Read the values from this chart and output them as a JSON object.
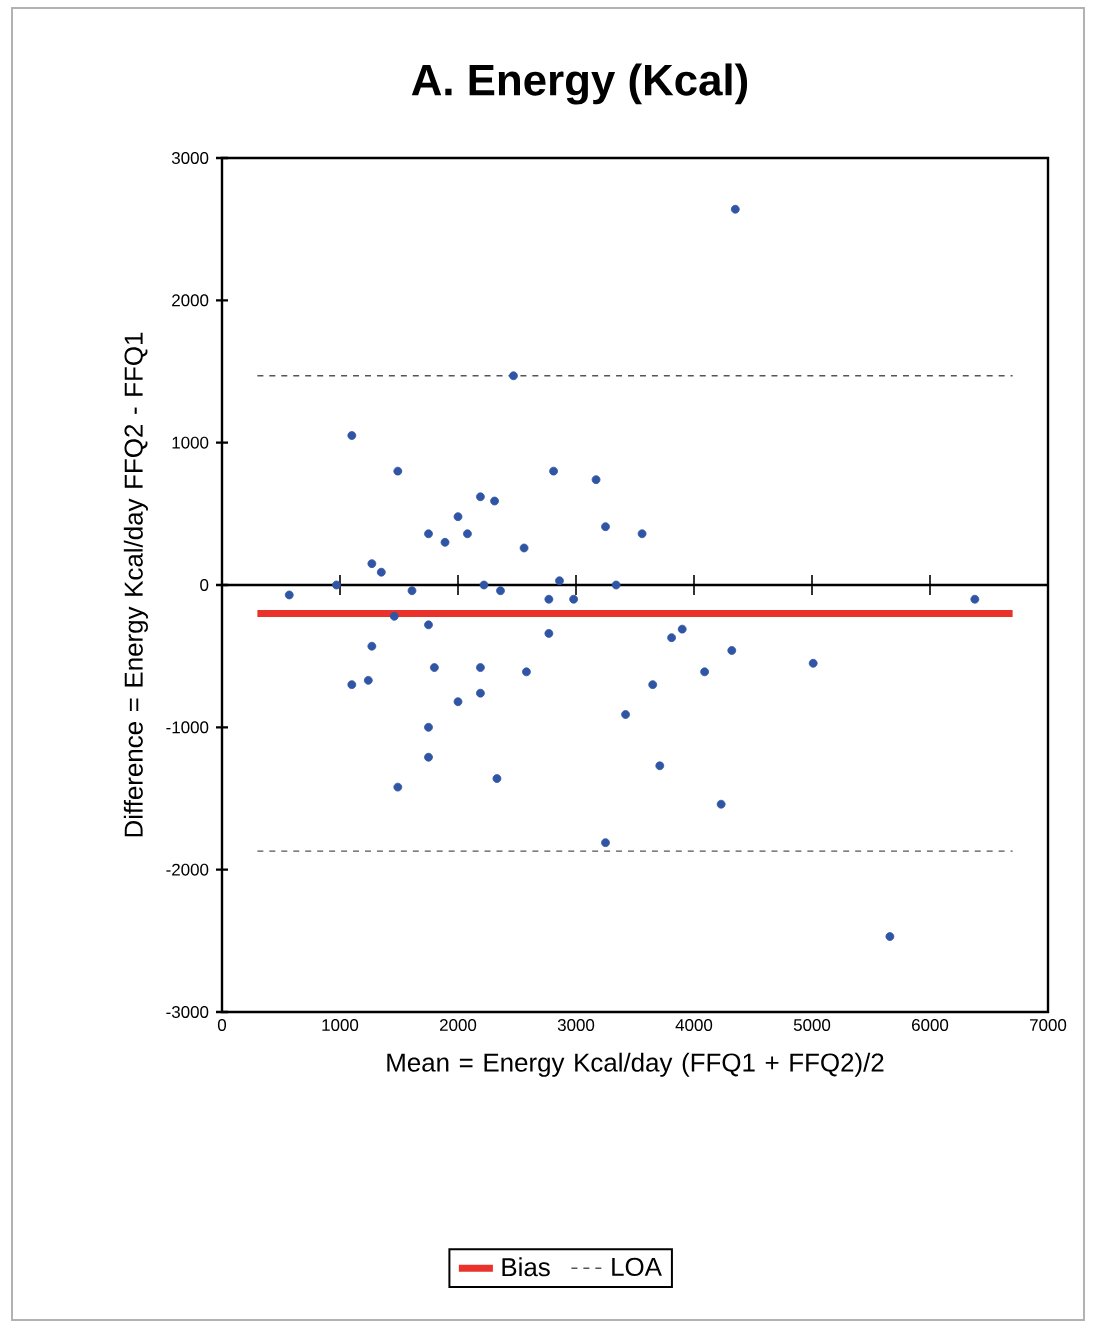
{
  "chart_data": {
    "type": "scatter",
    "title": "A. Energy (Kcal)",
    "xlabel": "Mean =  Energy Kcal/day (FFQ1 + FFQ2)/2",
    "ylabel": "Difference = Energy Kcal/day FFQ2 - FFQ1",
    "xlim": [
      0,
      7000
    ],
    "xticks": [
      0,
      1000,
      2000,
      3000,
      4000,
      5000,
      6000,
      7000
    ],
    "ylim": [
      -3000,
      3000
    ],
    "yticks": [
      -3000,
      -2000,
      -1000,
      0,
      1000,
      2000,
      3000
    ],
    "legend": "bottom",
    "series": [
      {
        "type": "scatter",
        "color": "#2f55a4",
        "marker": "circle",
        "x": [
          570,
          970,
          1100,
          1490,
          1270,
          1350,
          1610,
          1460,
          1270,
          1100,
          1240,
          1490,
          1750,
          1890,
          2000,
          2080,
          2190,
          2310,
          2470,
          2560,
          2220,
          2360,
          1750,
          1800,
          1750,
          1750,
          2000,
          2190,
          2190,
          2330,
          2580,
          2810,
          3170,
          3250,
          3560,
          2860,
          2770,
          2980,
          3340,
          2770,
          3250,
          3420,
          3650,
          3710,
          4350,
          6380,
          3810,
          3900,
          4320,
          4090,
          4230,
          5010,
          5660
        ],
        "values": [
          -70,
          0,
          1050,
          800,
          150,
          90,
          -40,
          -220,
          -430,
          -700,
          -670,
          -1420,
          360,
          300,
          480,
          360,
          620,
          590,
          1470,
          260,
          0,
          -40,
          -280,
          -580,
          -1000,
          -1210,
          -820,
          -580,
          -760,
          -1360,
          -610,
          800,
          740,
          410,
          360,
          30,
          -100,
          -100,
          0,
          -340,
          -1810,
          -910,
          -700,
          -1270,
          2640,
          -100,
          -370,
          -310,
          -460,
          -610,
          -1540,
          -550,
          -2470
        ]
      },
      {
        "type": "line",
        "name": "Bias",
        "color": "#e8322b",
        "line_style": "solid",
        "x": [
          300,
          6700
        ],
        "values": [
          -200,
          -200
        ]
      },
      {
        "type": "line",
        "name": "LOA",
        "color": "#555555",
        "line_style": "dashed",
        "x": [
          300,
          6700
        ],
        "values": [
          1470,
          1470
        ]
      },
      {
        "type": "line",
        "color": "#555555",
        "line_style": "dashed",
        "x": [
          300,
          6700
        ],
        "values": [
          -1870,
          -1870
        ]
      }
    ]
  }
}
